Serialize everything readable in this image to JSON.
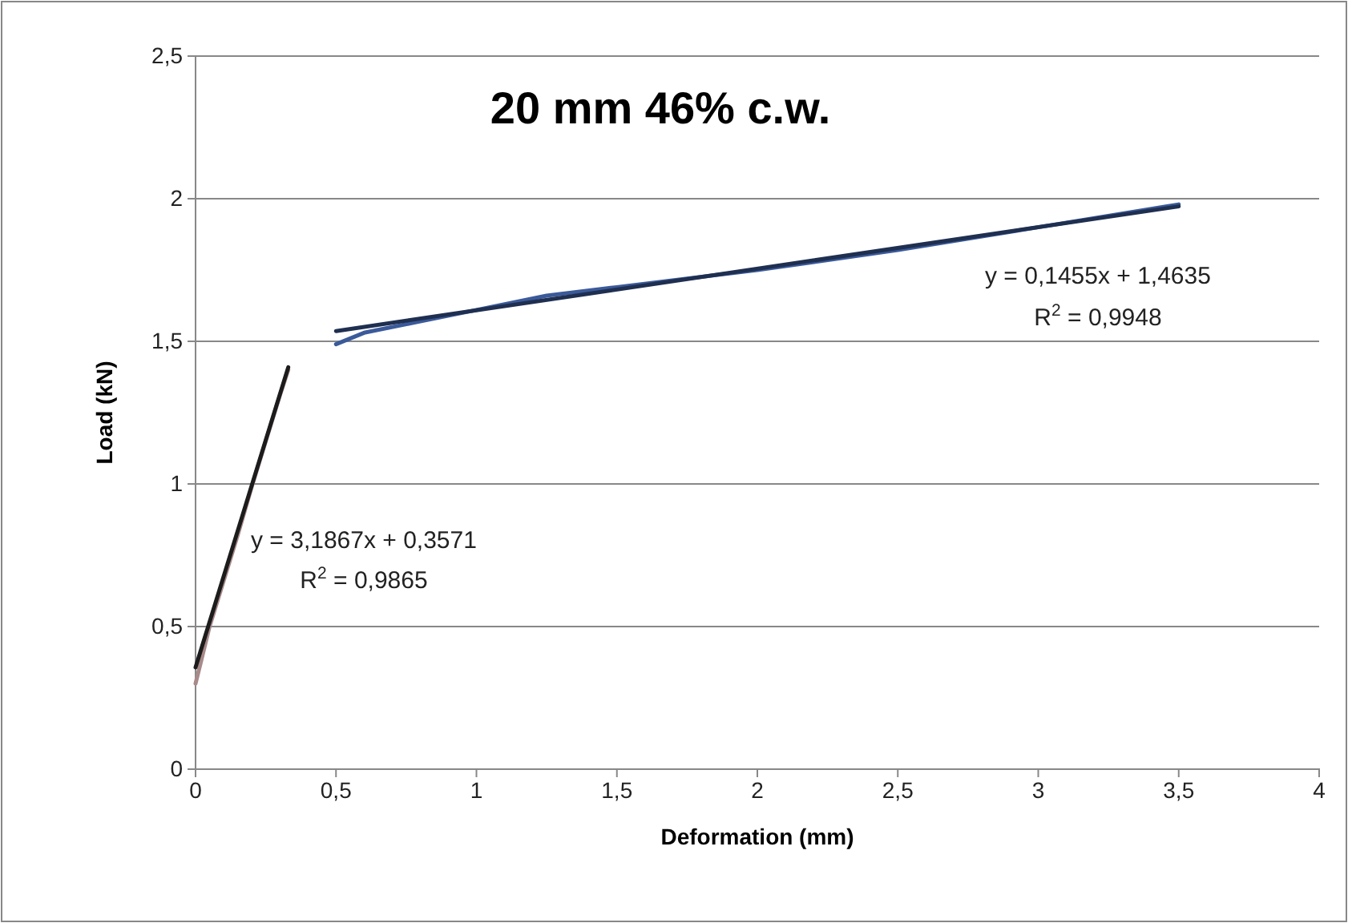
{
  "chart_data": {
    "type": "line",
    "title": "20 mm 46% c.w.",
    "xlabel": "Deformation (mm)",
    "ylabel": "Load (kN)",
    "xlim": [
      0,
      4
    ],
    "ylim": [
      0,
      2.5
    ],
    "xticks": [
      0,
      {
        "value": 0.5,
        "label": "0,5"
      },
      1,
      {
        "value": 1.5,
        "label": "1,5"
      },
      2,
      {
        "value": 2.5,
        "label": "2,5"
      },
      3,
      {
        "value": 3.5,
        "label": "3,5"
      },
      4
    ],
    "yticks": [
      0,
      {
        "value": 0.5,
        "label": "0,5"
      },
      1,
      {
        "value": 1.5,
        "label": "1,5"
      },
      2,
      {
        "value": 2.5,
        "label": "2,5"
      }
    ],
    "grid": "y",
    "marker": "none",
    "series": [
      {
        "color": "#a88a8a",
        "x": [
          0,
          0.05,
          0.1,
          0.15,
          0.2,
          0.25,
          0.3,
          0.33
        ],
        "values": [
          0.3,
          0.5,
          0.66,
          0.82,
          0.99,
          1.15,
          1.31,
          1.4
        ]
      },
      {
        "color": "#1c1c1c",
        "x": [
          0,
          0.33
        ],
        "values": [
          0.357,
          1.409
        ]
      },
      {
        "color": "#3b5a9a",
        "x": [
          0.5,
          0.6,
          0.8,
          1.0,
          1.25,
          1.5,
          2,
          2.5,
          3,
          3.5
        ],
        "values": [
          1.49,
          1.53,
          1.57,
          1.61,
          1.66,
          1.69,
          1.75,
          1.82,
          1.9,
          1.98
        ]
      },
      {
        "color": "#1f2f50",
        "x": [
          0.5,
          3.5
        ],
        "values": [
          1.536,
          1.973
        ]
      }
    ],
    "annotations": [
      "y = 3,1867x + 0,3571",
      "R$^{2}$ = 0,9865",
      "y = 0,1455x + 1,4635",
      "R$^{2}$ = 0,9948"
    ]
  }
}
